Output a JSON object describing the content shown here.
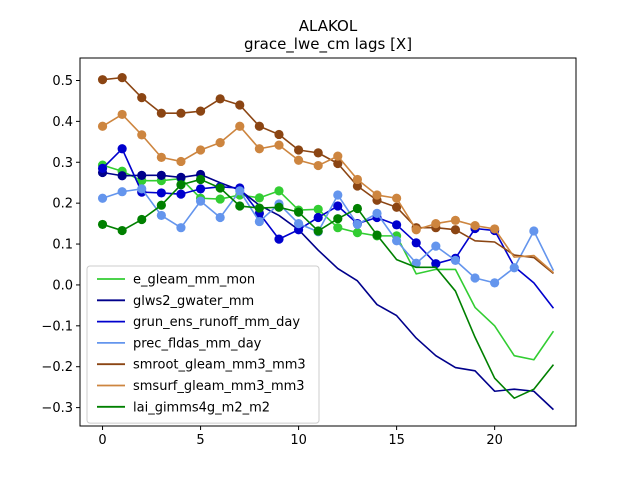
{
  "chart_data": {
    "type": "line",
    "title": "ALAKOL",
    "subtitle": "grace_lwe_cm lags [X]",
    "xlabel": "",
    "ylabel": "",
    "xlim": [
      -1.15,
      24.15
    ],
    "ylim": [
      -0.345,
      0.555
    ],
    "x_ticks": [
      0,
      5,
      10,
      15,
      20
    ],
    "y_ticks": [
      -0.3,
      -0.2,
      -0.1,
      0.0,
      0.1,
      0.2,
      0.3,
      0.4,
      0.5
    ],
    "y_tick_labels": [
      "−0.3",
      "−0.2",
      "−0.1",
      "0.0",
      "0.1",
      "0.2",
      "0.3",
      "0.4",
      "0.5"
    ],
    "grid": false,
    "legend_position": "lower-left",
    "x": [
      0,
      1,
      2,
      3,
      4,
      5,
      6,
      7,
      8,
      9,
      10,
      11,
      12,
      13,
      14,
      15,
      16,
      17,
      18,
      19,
      20,
      21,
      22,
      23
    ],
    "series": [
      {
        "name": "e_gleam_mm_mon",
        "color": "#32cd32",
        "values": [
          0.293,
          0.278,
          0.255,
          0.255,
          0.26,
          0.212,
          0.21,
          0.22,
          0.213,
          0.23,
          0.183,
          0.185,
          0.14,
          0.128,
          0.12,
          0.12,
          0.027,
          0.038,
          0.038,
          -0.055,
          -0.1,
          -0.173,
          -0.183,
          -0.113
        ],
        "markers_upto": 15
      },
      {
        "name": "glws2_gwater_mm",
        "color": "#00008b",
        "values": [
          0.275,
          0.267,
          0.268,
          0.268,
          0.263,
          0.27,
          0.25,
          0.232,
          0.195,
          0.17,
          0.135,
          0.085,
          0.04,
          0.01,
          -0.048,
          -0.075,
          -0.13,
          -0.173,
          -0.202,
          -0.21,
          -0.26,
          -0.255,
          -0.26,
          -0.305
        ],
        "markers_upto": 5
      },
      {
        "name": "grun_ens_runoff_mm_day",
        "color": "#0000cd",
        "values": [
          0.285,
          0.333,
          0.227,
          0.225,
          0.222,
          0.235,
          0.24,
          0.237,
          0.175,
          0.112,
          0.135,
          0.165,
          0.193,
          0.15,
          0.165,
          0.147,
          0.103,
          0.052,
          0.065,
          0.138,
          0.133,
          0.045,
          0.005,
          -0.057
        ],
        "markers_upto": 20
      },
      {
        "name": "prec_fldas_mm_day",
        "color": "#6495ed",
        "values": [
          0.212,
          0.228,
          0.235,
          0.17,
          0.14,
          0.205,
          0.165,
          0.23,
          0.155,
          0.198,
          0.15,
          0.13,
          0.22,
          0.148,
          0.175,
          0.108,
          0.053,
          0.095,
          0.06,
          0.017,
          0.005,
          0.042,
          0.132,
          0.035
        ],
        "markers_upto": 22
      },
      {
        "name": "smroot_gleam_mm3_mm3",
        "color": "#8b4513",
        "values": [
          0.502,
          0.507,
          0.458,
          0.42,
          0.42,
          0.425,
          0.455,
          0.44,
          0.388,
          0.368,
          0.33,
          0.323,
          0.297,
          0.242,
          0.207,
          0.19,
          0.14,
          0.14,
          0.135,
          0.108,
          0.105,
          0.073,
          0.067,
          0.028
        ],
        "markers_upto": 18
      },
      {
        "name": "smsurf_gleam_mm3_mm3",
        "color": "#cd853f",
        "values": [
          0.388,
          0.417,
          0.367,
          0.312,
          0.302,
          0.33,
          0.348,
          0.388,
          0.333,
          0.342,
          0.305,
          0.292,
          0.315,
          0.258,
          0.22,
          0.212,
          0.135,
          0.15,
          0.158,
          0.145,
          0.137,
          0.068,
          0.072,
          0.03
        ],
        "markers_upto": 20
      },
      {
        "name": "lai_gimms4g_m2_m2",
        "color": "#008000",
        "values": [
          0.148,
          0.133,
          0.16,
          0.195,
          0.245,
          0.258,
          0.237,
          0.193,
          0.188,
          0.19,
          0.178,
          0.132,
          0.162,
          0.187,
          0.122,
          0.062,
          0.043,
          0.043,
          -0.015,
          -0.128,
          -0.228,
          -0.277,
          -0.255,
          -0.195
        ],
        "markers_upto": 14
      }
    ]
  }
}
